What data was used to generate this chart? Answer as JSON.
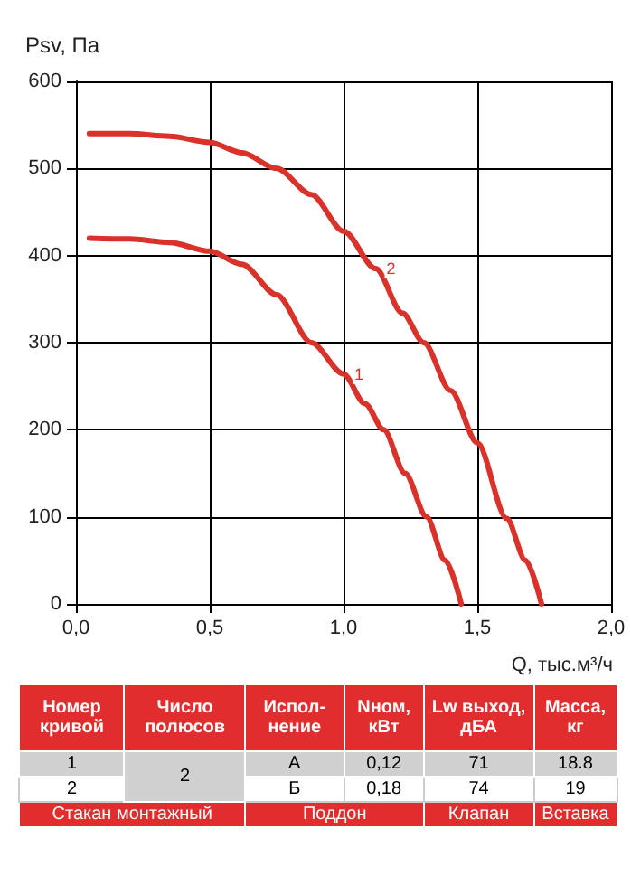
{
  "chart_data": {
    "type": "line",
    "xlabel": "Q, тыс.м³/ч",
    "ylabel": "Psv, Па",
    "series": [
      {
        "name": "1",
        "color": "#d9322b",
        "x": [
          0.05,
          0.2,
          0.35,
          0.5,
          0.62,
          0.75,
          0.88,
          1.0,
          1.08,
          1.15,
          1.23,
          1.31,
          1.38,
          1.44
        ],
        "values": [
          420,
          419,
          415,
          405,
          390,
          355,
          300,
          264,
          230,
          200,
          150,
          100,
          50,
          0
        ]
      },
      {
        "name": "2",
        "color": "#d9322b",
        "x": [
          0.05,
          0.2,
          0.35,
          0.5,
          0.62,
          0.75,
          0.88,
          1.0,
          1.12,
          1.22,
          1.3,
          1.4,
          1.5,
          1.61,
          1.68,
          1.74
        ],
        "values": [
          540,
          540,
          537,
          530,
          518,
          500,
          470,
          428,
          385,
          334,
          300,
          245,
          185,
          98,
          50,
          0
        ]
      }
    ],
    "xlim": [
      0,
      2
    ],
    "xticks": [
      {
        "value": 0,
        "label": "0,0"
      },
      {
        "value": 0.5,
        "label": "0,5"
      },
      {
        "value": 1,
        "label": "1,0"
      },
      {
        "value": 1.5,
        "label": "1,5"
      },
      {
        "value": 2,
        "label": "2,0"
      }
    ],
    "ylim": [
      0,
      600
    ],
    "yticks": [
      0,
      100,
      200,
      300,
      400,
      500,
      600
    ],
    "grid": true,
    "marker": "none",
    "line_style": "solid",
    "annotations": [
      "Номер кривой",
      "Число полюсов",
      "Испол-нение",
      "Nном, кВт",
      "Lw выход, дБА",
      "Масса, кг",
      "1",
      "2",
      "А",
      "0,12",
      "71",
      "18.8",
      "2",
      "Б",
      "0,18",
      "74",
      "19",
      "Стакан монтажный",
      "Поддон",
      "Клапан",
      "Вставка"
    ]
  }
}
